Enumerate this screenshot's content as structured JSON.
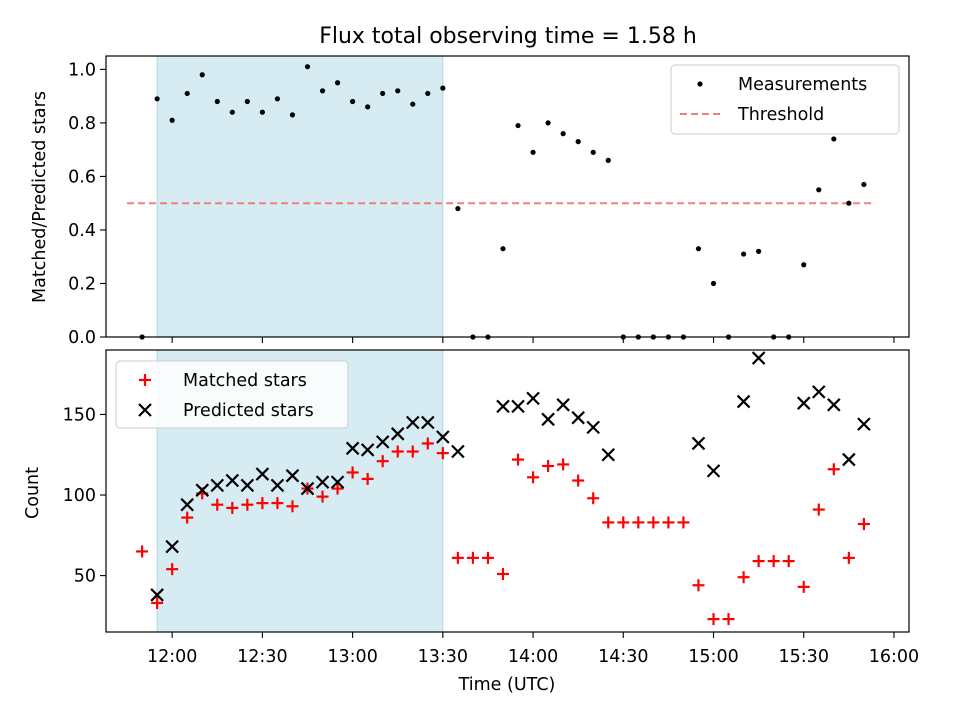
{
  "chart_data": [
    {
      "type": "scatter",
      "title": "Flux total observing time = 1.58 h",
      "xlabel": "",
      "ylabel": "Matched/Predicted stars",
      "xlim": [
        "11:38",
        "16:05"
      ],
      "ylim": [
        0,
        1.05
      ],
      "yticks": [
        0.0,
        0.2,
        0.4,
        0.6,
        0.8,
        1.0
      ],
      "ytick_labels": [
        "0.0",
        "0.2",
        "0.4",
        "0.6",
        "0.8",
        "1.0"
      ],
      "shaded_span": [
        "11:55",
        "13:30"
      ],
      "shaded_color": "#add8e6",
      "legend_position": "upper right",
      "threshold": {
        "name": "Threshold",
        "value": 0.5,
        "x_range": [
          "11:45",
          "15:53"
        ],
        "color": "#f08080",
        "style": "dashed"
      },
      "series": [
        {
          "name": "Measurements",
          "marker": "dot",
          "color": "#000000",
          "points": [
            [
              "11:50",
              0.0
            ],
            [
              "11:55",
              0.89
            ],
            [
              "12:00",
              0.81
            ],
            [
              "12:05",
              0.91
            ],
            [
              "12:10",
              0.98
            ],
            [
              "12:15",
              0.88
            ],
            [
              "12:20",
              0.84
            ],
            [
              "12:25",
              0.88
            ],
            [
              "12:30",
              0.84
            ],
            [
              "12:35",
              0.89
            ],
            [
              "12:40",
              0.83
            ],
            [
              "12:45",
              1.01
            ],
            [
              "12:50",
              0.92
            ],
            [
              "12:55",
              0.95
            ],
            [
              "13:00",
              0.88
            ],
            [
              "13:05",
              0.86
            ],
            [
              "13:10",
              0.91
            ],
            [
              "13:15",
              0.92
            ],
            [
              "13:20",
              0.87
            ],
            [
              "13:25",
              0.91
            ],
            [
              "13:30",
              0.93
            ],
            [
              "13:35",
              0.48
            ],
            [
              "13:40",
              0.0
            ],
            [
              "13:45",
              0.0
            ],
            [
              "13:50",
              0.33
            ],
            [
              "13:55",
              0.79
            ],
            [
              "14:00",
              0.69
            ],
            [
              "14:05",
              0.8
            ],
            [
              "14:10",
              0.76
            ],
            [
              "14:15",
              0.73
            ],
            [
              "14:20",
              0.69
            ],
            [
              "14:25",
              0.66
            ],
            [
              "14:30",
              0.0
            ],
            [
              "14:35",
              0.0
            ],
            [
              "14:40",
              0.0
            ],
            [
              "14:45",
              0.0
            ],
            [
              "14:50",
              0.0
            ],
            [
              "14:55",
              0.33
            ],
            [
              "15:00",
              0.2
            ],
            [
              "15:05",
              0.0
            ],
            [
              "15:10",
              0.31
            ],
            [
              "15:15",
              0.32
            ],
            [
              "15:20",
              0.0
            ],
            [
              "15:25",
              0.0
            ],
            [
              "15:30",
              0.27
            ],
            [
              "15:35",
              0.55
            ],
            [
              "15:40",
              0.74
            ],
            [
              "15:45",
              0.5
            ],
            [
              "15:50",
              0.57
            ]
          ]
        }
      ]
    },
    {
      "type": "scatter",
      "title": "",
      "xlabel": "Time (UTC)",
      "ylabel": "Count",
      "xlim": [
        "11:38",
        "16:05"
      ],
      "ylim": [
        15,
        190
      ],
      "yticks": [
        50,
        100,
        150
      ],
      "ytick_labels": [
        "50",
        "100",
        "150"
      ],
      "xticks": [
        "12:00",
        "12:30",
        "13:00",
        "13:30",
        "14:00",
        "14:30",
        "15:00",
        "15:30",
        "16:00"
      ],
      "shaded_span": [
        "11:55",
        "13:30"
      ],
      "shaded_color": "#add8e6",
      "legend_position": "upper left",
      "series": [
        {
          "name": "Matched stars",
          "marker": "plus",
          "color": "#ff0000",
          "points": [
            [
              "11:50",
              65
            ],
            [
              "11:55",
              33
            ],
            [
              "12:00",
              54
            ],
            [
              "12:05",
              86
            ],
            [
              "12:10",
              101
            ],
            [
              "12:15",
              94
            ],
            [
              "12:20",
              92
            ],
            [
              "12:25",
              94
            ],
            [
              "12:30",
              95
            ],
            [
              "12:35",
              95
            ],
            [
              "12:40",
              93
            ],
            [
              "12:45",
              104
            ],
            [
              "12:50",
              99
            ],
            [
              "12:55",
              104
            ],
            [
              "13:00",
              114
            ],
            [
              "13:05",
              110
            ],
            [
              "13:10",
              121
            ],
            [
              "13:15",
              127
            ],
            [
              "13:20",
              127
            ],
            [
              "13:25",
              132
            ],
            [
              "13:30",
              126
            ],
            [
              "13:35",
              61
            ],
            [
              "13:40",
              61
            ],
            [
              "13:45",
              61
            ],
            [
              "13:50",
              51
            ],
            [
              "13:55",
              122
            ],
            [
              "14:00",
              111
            ],
            [
              "14:05",
              118
            ],
            [
              "14:10",
              119
            ],
            [
              "14:15",
              109
            ],
            [
              "14:20",
              98
            ],
            [
              "14:25",
              83
            ],
            [
              "14:30",
              83
            ],
            [
              "14:35",
              83
            ],
            [
              "14:40",
              83
            ],
            [
              "14:45",
              83
            ],
            [
              "14:50",
              83
            ],
            [
              "14:55",
              44
            ],
            [
              "15:00",
              23
            ],
            [
              "15:05",
              23
            ],
            [
              "15:10",
              49
            ],
            [
              "15:15",
              59
            ],
            [
              "15:20",
              59
            ],
            [
              "15:25",
              59
            ],
            [
              "15:30",
              43
            ],
            [
              "15:35",
              91
            ],
            [
              "15:40",
              116
            ],
            [
              "15:45",
              61
            ],
            [
              "15:50",
              82
            ]
          ]
        },
        {
          "name": "Predicted stars",
          "marker": "x",
          "color": "#000000",
          "points": [
            [
              "11:55",
              38
            ],
            [
              "12:00",
              68
            ],
            [
              "12:05",
              94
            ],
            [
              "12:10",
              103
            ],
            [
              "12:15",
              106
            ],
            [
              "12:20",
              109
            ],
            [
              "12:25",
              106
            ],
            [
              "12:30",
              113
            ],
            [
              "12:35",
              106
            ],
            [
              "12:40",
              112
            ],
            [
              "12:45",
              104
            ],
            [
              "12:50",
              108
            ],
            [
              "12:55",
              108
            ],
            [
              "13:00",
              129
            ],
            [
              "13:05",
              128
            ],
            [
              "13:10",
              133
            ],
            [
              "13:15",
              138
            ],
            [
              "13:20",
              145
            ],
            [
              "13:25",
              145
            ],
            [
              "13:30",
              136
            ],
            [
              "13:35",
              127
            ],
            [
              "13:50",
              155
            ],
            [
              "13:55",
              155
            ],
            [
              "14:00",
              160
            ],
            [
              "14:05",
              147
            ],
            [
              "14:10",
              156
            ],
            [
              "14:15",
              148
            ],
            [
              "14:20",
              142
            ],
            [
              "14:25",
              125
            ],
            [
              "14:55",
              132
            ],
            [
              "15:00",
              115
            ],
            [
              "15:10",
              158
            ],
            [
              "15:15",
              185
            ],
            [
              "15:30",
              157
            ],
            [
              "15:35",
              164
            ],
            [
              "15:40",
              156
            ],
            [
              "15:45",
              122
            ],
            [
              "15:50",
              144
            ]
          ]
        }
      ]
    }
  ]
}
